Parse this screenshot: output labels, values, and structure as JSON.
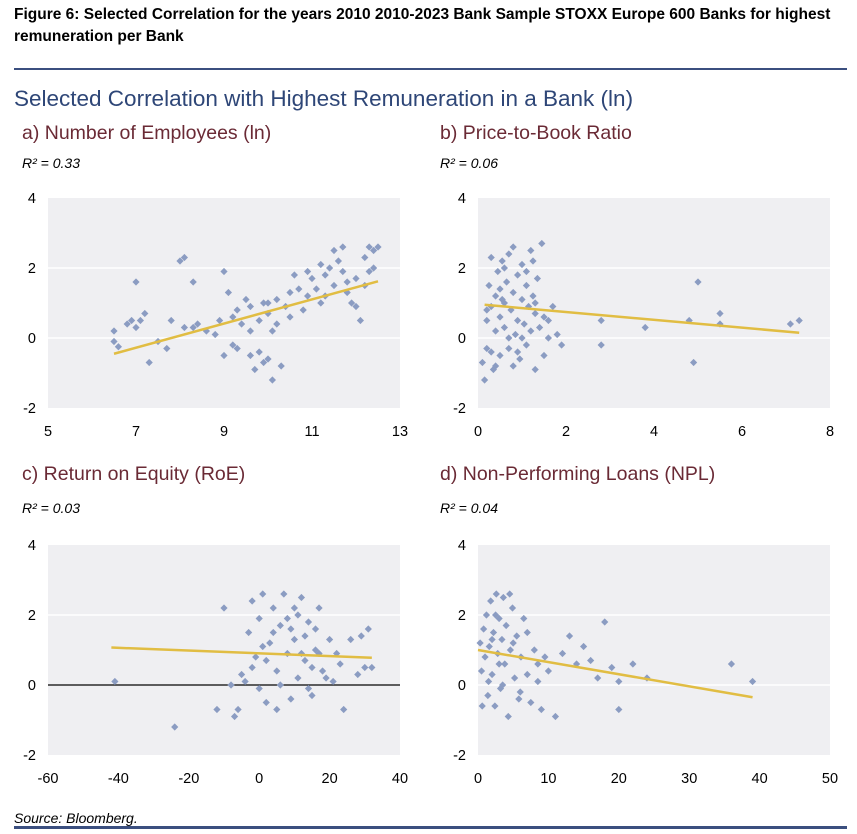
{
  "figure": {
    "title": "Figure 6: Selected Correlation for the years 2010 2010-2023 Bank Sample STOXX Europe 600 Banks for highest remuneration per Bank",
    "main_title": "Selected Correlation with Highest Remuneration in a Bank (ln)",
    "source": "Source: Bloomberg."
  },
  "colors": {
    "point": "#8b9cc2",
    "trend": "#e1bd43",
    "plot_bg": "#efeff2",
    "grid": "#ffffff",
    "rule": "#3b4f7f",
    "main_title": "#2e4677",
    "panel_title": "#6a2a35"
  },
  "chart_data": [
    {
      "type": "scatter",
      "title": "a) Number of Employees (ln)",
      "r2": "R² = 0.33",
      "xlim": [
        5,
        13
      ],
      "ylim": [
        -2,
        4
      ],
      "xticks": [
        "5",
        "7",
        "9",
        "11",
        "13"
      ],
      "yticks": [
        "4",
        "2",
        "0",
        "-2"
      ],
      "zero_line": false,
      "trendline": [
        [
          6.5,
          -0.45
        ],
        [
          12.5,
          1.62
        ]
      ],
      "points": [
        [
          6.5,
          -0.1
        ],
        [
          6.5,
          0.2
        ],
        [
          6.6,
          -0.25
        ],
        [
          6.8,
          0.4
        ],
        [
          6.9,
          0.5
        ],
        [
          7.0,
          1.6
        ],
        [
          7.0,
          0.3
        ],
        [
          7.1,
          0.5
        ],
        [
          7.2,
          0.7
        ],
        [
          7.3,
          -0.7
        ],
        [
          7.5,
          -0.1
        ],
        [
          7.7,
          -0.3
        ],
        [
          8.0,
          2.2
        ],
        [
          8.1,
          2.3
        ],
        [
          8.1,
          0.3
        ],
        [
          8.3,
          1.6
        ],
        [
          8.3,
          0.3
        ],
        [
          8.4,
          0.4
        ],
        [
          8.6,
          0.2
        ],
        [
          8.9,
          0.5
        ],
        [
          9.0,
          1.9
        ],
        [
          9.0,
          -0.5
        ],
        [
          9.1,
          1.3
        ],
        [
          9.2,
          0.6
        ],
        [
          9.2,
          -0.2
        ],
        [
          9.3,
          0.8
        ],
        [
          9.4,
          0.4
        ],
        [
          9.5,
          1.1
        ],
        [
          9.6,
          0.9
        ],
        [
          9.6,
          -0.5
        ],
        [
          9.7,
          -0.9
        ],
        [
          9.8,
          0.5
        ],
        [
          9.8,
          -0.4
        ],
        [
          9.9,
          1.0
        ],
        [
          10.0,
          0.7
        ],
        [
          10.0,
          -0.6
        ],
        [
          10.1,
          -1.2
        ],
        [
          10.1,
          0.2
        ],
        [
          10.2,
          1.1
        ],
        [
          10.3,
          -0.8
        ],
        [
          10.4,
          0.9
        ],
        [
          10.5,
          0.6
        ],
        [
          10.5,
          1.3
        ],
        [
          10.7,
          1.4
        ],
        [
          10.8,
          0.8
        ],
        [
          10.9,
          1.2
        ],
        [
          11.0,
          1.7
        ],
        [
          11.1,
          1.4
        ],
        [
          11.2,
          1.0
        ],
        [
          11.3,
          1.8
        ],
        [
          11.4,
          2.0
        ],
        [
          11.5,
          2.5
        ],
        [
          11.5,
          1.5
        ],
        [
          11.6,
          2.2
        ],
        [
          11.7,
          1.9
        ],
        [
          11.8,
          1.3
        ],
        [
          11.9,
          1.0
        ],
        [
          12.0,
          1.7
        ],
        [
          12.0,
          0.9
        ],
        [
          12.1,
          0.5
        ],
        [
          12.2,
          2.3
        ],
        [
          12.3,
          1.9
        ],
        [
          12.3,
          2.6
        ],
        [
          12.4,
          2.5
        ],
        [
          12.5,
          2.6
        ],
        [
          12.4,
          2.0
        ],
        [
          12.2,
          1.5
        ],
        [
          11.7,
          2.6
        ],
        [
          11.2,
          2.1
        ],
        [
          10.9,
          1.9
        ],
        [
          9.3,
          -0.3
        ],
        [
          9.6,
          0.2
        ],
        [
          10.2,
          0.4
        ],
        [
          8.8,
          0.1
        ],
        [
          7.8,
          0.5
        ],
        [
          10.6,
          1.8
        ],
        [
          11.3,
          1.2
        ],
        [
          11.8,
          1.6
        ],
        [
          10.0,
          1.0
        ],
        [
          9.9,
          -0.7
        ]
      ]
    },
    {
      "type": "scatter",
      "title": "b) Price-to-Book Ratio",
      "r2": "R² = 0.06",
      "xlim": [
        0,
        8
      ],
      "ylim": [
        -2,
        4
      ],
      "xticks": [
        "0",
        "2",
        "4",
        "6",
        "8"
      ],
      "yticks": [
        "4",
        "2",
        "0",
        "-2"
      ],
      "zero_line": false,
      "trendline": [
        [
          0.15,
          0.95
        ],
        [
          7.3,
          0.15
        ]
      ],
      "points": [
        [
          0.1,
          -0.7
        ],
        [
          0.15,
          -1.2
        ],
        [
          0.2,
          0.5
        ],
        [
          0.2,
          -0.3
        ],
        [
          0.25,
          1.5
        ],
        [
          0.3,
          0.9
        ],
        [
          0.3,
          2.3
        ],
        [
          0.35,
          -0.9
        ],
        [
          0.4,
          0.2
        ],
        [
          0.4,
          1.2
        ],
        [
          0.45,
          1.9
        ],
        [
          0.5,
          0.6
        ],
        [
          0.5,
          -0.5
        ],
        [
          0.55,
          2.2
        ],
        [
          0.6,
          1.0
        ],
        [
          0.6,
          0.3
        ],
        [
          0.65,
          1.6
        ],
        [
          0.7,
          2.4
        ],
        [
          0.7,
          -0.3
        ],
        [
          0.75,
          0.8
        ],
        [
          0.8,
          1.3
        ],
        [
          0.8,
          2.6
        ],
        [
          0.85,
          0.1
        ],
        [
          0.9,
          1.8
        ],
        [
          0.9,
          0.5
        ],
        [
          0.95,
          -0.6
        ],
        [
          1.0,
          1.1
        ],
        [
          1.0,
          2.1
        ],
        [
          1.05,
          0.4
        ],
        [
          1.1,
          1.5
        ],
        [
          1.1,
          -0.2
        ],
        [
          1.15,
          0.9
        ],
        [
          1.2,
          2.5
        ],
        [
          1.2,
          0.2
        ],
        [
          1.25,
          1.2
        ],
        [
          1.3,
          -0.9
        ],
        [
          1.3,
          0.7
        ],
        [
          1.35,
          1.7
        ],
        [
          1.4,
          0.3
        ],
        [
          1.45,
          2.7
        ],
        [
          1.5,
          0.6
        ],
        [
          1.5,
          -0.5
        ],
        [
          1.6,
          0.0
        ],
        [
          1.7,
          0.9
        ],
        [
          1.8,
          0.1
        ],
        [
          1.9,
          -0.2
        ],
        [
          2.8,
          0.5
        ],
        [
          2.8,
          -0.2
        ],
        [
          3.8,
          0.3
        ],
        [
          4.8,
          0.5
        ],
        [
          5.0,
          1.6
        ],
        [
          5.5,
          0.7
        ],
        [
          5.5,
          0.4
        ],
        [
          4.9,
          -0.7
        ],
        [
          7.1,
          0.4
        ],
        [
          7.3,
          0.5
        ],
        [
          0.3,
          -0.4
        ],
        [
          0.5,
          1.4
        ],
        [
          0.7,
          0.0
        ],
        [
          0.9,
          -0.4
        ],
        [
          1.1,
          1.9
        ],
        [
          1.3,
          1.0
        ],
        [
          0.4,
          -0.8
        ],
        [
          0.6,
          2.0
        ],
        [
          0.2,
          0.8
        ],
        [
          1.0,
          0.0
        ],
        [
          0.8,
          -0.8
        ],
        [
          1.6,
          0.5
        ],
        [
          1.25,
          2.2
        ],
        [
          0.55,
          1.1
        ]
      ]
    },
    {
      "type": "scatter",
      "title": "c) Return on Equity (RoE)",
      "r2": "R² = 0.03",
      "xlim": [
        -60,
        40
      ],
      "ylim": [
        -2,
        4
      ],
      "xticks": [
        "-60",
        "-40",
        "-20",
        "0",
        "20",
        "40"
      ],
      "yticks": [
        "4",
        "2",
        "0",
        "-2"
      ],
      "zero_line": true,
      "trendline": [
        [
          -42,
          1.07
        ],
        [
          32,
          0.78
        ]
      ],
      "points": [
        [
          -41,
          0.1
        ],
        [
          -24,
          -1.2
        ],
        [
          -12,
          -0.7
        ],
        [
          -10,
          2.2
        ],
        [
          -8,
          0.0
        ],
        [
          -7,
          -0.9
        ],
        [
          -6,
          -0.7
        ],
        [
          -5,
          0.3
        ],
        [
          -4,
          0.1
        ],
        [
          -3,
          1.5
        ],
        [
          -2,
          2.4
        ],
        [
          -1,
          0.8
        ],
        [
          0,
          -0.1
        ],
        [
          0,
          1.9
        ],
        [
          1,
          2.6
        ],
        [
          2,
          -0.5
        ],
        [
          3,
          1.2
        ],
        [
          4,
          2.2
        ],
        [
          5,
          0.4
        ],
        [
          5,
          -0.7
        ],
        [
          6,
          1.7
        ],
        [
          7,
          2.6
        ],
        [
          8,
          0.9
        ],
        [
          9,
          -0.4
        ],
        [
          10,
          2.2
        ],
        [
          10,
          1.3
        ],
        [
          11,
          0.2
        ],
        [
          12,
          2.5
        ],
        [
          13,
          0.7
        ],
        [
          14,
          1.8
        ],
        [
          15,
          -0.3
        ],
        [
          16,
          1.0
        ],
        [
          17,
          2.2
        ],
        [
          18,
          0.4
        ],
        [
          20,
          1.3
        ],
        [
          21,
          0.1
        ],
        [
          22,
          0.9
        ],
        [
          23,
          0.6
        ],
        [
          24,
          -0.7
        ],
        [
          26,
          1.3
        ],
        [
          28,
          0.3
        ],
        [
          29,
          1.4
        ],
        [
          30,
          0.5
        ],
        [
          31,
          1.6
        ],
        [
          32,
          0.5
        ],
        [
          2,
          0.7
        ],
        [
          4,
          1.5
        ],
        [
          6,
          0.0
        ],
        [
          8,
          1.9
        ],
        [
          12,
          0.9
        ],
        [
          14,
          -0.1
        ],
        [
          16,
          1.6
        ],
        [
          -2,
          0.5
        ],
        [
          1,
          1.1
        ],
        [
          9,
          1.6
        ],
        [
          11,
          2.0
        ],
        [
          13,
          1.4
        ],
        [
          15,
          0.5
        ],
        [
          17,
          0.9
        ],
        [
          19,
          0.2
        ]
      ]
    },
    {
      "type": "scatter",
      "title": "d) Non-Performing Loans (NPL)",
      "r2": "R² = 0.04",
      "xlim": [
        0,
        50
      ],
      "ylim": [
        -2,
        4
      ],
      "xticks": [
        "0",
        "10",
        "20",
        "30",
        "40",
        "50"
      ],
      "yticks": [
        "4",
        "2",
        "0",
        "-2"
      ],
      "zero_line": false,
      "trendline": [
        [
          0,
          1.0
        ],
        [
          39,
          -0.35
        ]
      ],
      "points": [
        [
          0.3,
          1.2
        ],
        [
          0.5,
          0.4
        ],
        [
          0.6,
          -0.6
        ],
        [
          0.8,
          1.6
        ],
        [
          1.0,
          0.8
        ],
        [
          1.2,
          2.0
        ],
        [
          1.4,
          -0.3
        ],
        [
          1.6,
          1.1
        ],
        [
          1.8,
          2.4
        ],
        [
          2.0,
          0.3
        ],
        [
          2.2,
          1.5
        ],
        [
          2.4,
          -0.6
        ],
        [
          2.6,
          2.6
        ],
        [
          2.8,
          0.9
        ],
        [
          3.0,
          1.9
        ],
        [
          3.2,
          -0.1
        ],
        [
          3.4,
          1.3
        ],
        [
          3.6,
          2.5
        ],
        [
          3.8,
          0.6
        ],
        [
          4.0,
          1.7
        ],
        [
          4.3,
          -0.9
        ],
        [
          4.6,
          1.0
        ],
        [
          4.9,
          2.2
        ],
        [
          5.2,
          0.2
        ],
        [
          5.5,
          1.4
        ],
        [
          5.8,
          -0.4
        ],
        [
          6.1,
          0.8
        ],
        [
          6.5,
          1.9
        ],
        [
          7.0,
          0.3
        ],
        [
          7.5,
          -0.5
        ],
        [
          8.0,
          1.0
        ],
        [
          8.5,
          0.1
        ],
        [
          9.0,
          -0.7
        ],
        [
          9.5,
          0.8
        ],
        [
          10.0,
          0.4
        ],
        [
          11,
          -0.9
        ],
        [
          12,
          0.9
        ],
        [
          13,
          1.4
        ],
        [
          14,
          0.6
        ],
        [
          15,
          1.1
        ],
        [
          16,
          0.7
        ],
        [
          17,
          0.2
        ],
        [
          18,
          1.8
        ],
        [
          19,
          0.5
        ],
        [
          20,
          -0.7
        ],
        [
          20,
          0.1
        ],
        [
          22,
          0.6
        ],
        [
          24,
          0.2
        ],
        [
          36,
          0.6
        ],
        [
          39,
          0.1
        ],
        [
          1.5,
          0.1
        ],
        [
          2.5,
          2.0
        ],
        [
          3.5,
          0.0
        ],
        [
          4.5,
          2.6
        ],
        [
          5.0,
          1.2
        ],
        [
          6.0,
          -0.2
        ],
        [
          7.0,
          1.5
        ],
        [
          8.5,
          0.6
        ],
        [
          2.0,
          1.3
        ],
        [
          3.0,
          0.6
        ]
      ]
    }
  ]
}
